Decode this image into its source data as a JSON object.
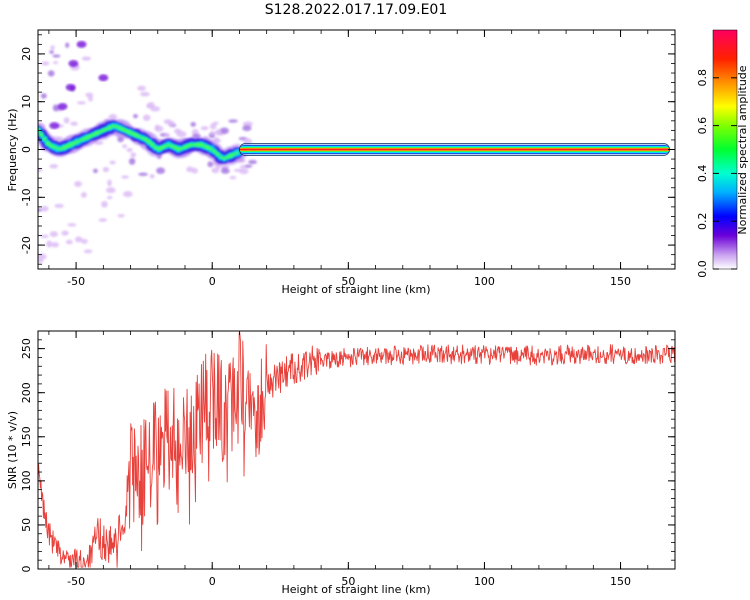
{
  "title": "S128.2022.017.17.09.E01",
  "chart_data": [
    {
      "type": "heatmap",
      "xlabel": "Height of straight line (km)",
      "ylabel": "Frequency (Hz)",
      "xlim": [
        -64,
        170
      ],
      "ylim": [
        -25,
        25
      ],
      "xticks": [
        "-50",
        "0",
        "50",
        "100",
        "150"
      ],
      "xtick_values": [
        -50,
        0,
        50,
        100,
        150
      ],
      "yticks": [
        "20",
        "10",
        "0",
        "-10",
        "-20"
      ],
      "ytick_values": [
        20,
        10,
        0,
        -10,
        -20
      ],
      "colorbar": {
        "label": "Normalized spectral amplitude",
        "range": [
          0,
          1
        ],
        "ticks": [
          "0.0",
          "0.2",
          "0.4",
          "0.6",
          "0.8"
        ],
        "tick_values": [
          0.0,
          0.2,
          0.4,
          0.6,
          0.8
        ],
        "colormap": "rainbow (magenta-blue-cyan-green-yellow-orange-red)"
      },
      "ridge": {
        "x": [
          -64,
          -60,
          -56,
          -52,
          -48,
          -44,
          -40,
          -36,
          -32,
          -28,
          -24,
          -20,
          -16,
          -12,
          -8,
          -4,
          0,
          4,
          8,
          12,
          20,
          40,
          60,
          80,
          100,
          120,
          140,
          160,
          168
        ],
        "y": [
          4,
          1,
          0,
          1,
          2,
          3,
          4,
          5,
          4,
          3,
          2,
          0,
          1,
          0,
          1,
          1,
          0,
          -2,
          -1,
          0,
          0,
          0,
          0,
          0,
          0,
          0,
          0,
          0,
          0
        ]
      }
    },
    {
      "type": "line",
      "xlabel": "Height of straight line (km)",
      "ylabel": "SNR (10 * v/v)",
      "xlim": [
        -64,
        170
      ],
      "ylim": [
        0,
        270
      ],
      "xticks": [
        "-50",
        "0",
        "50",
        "100",
        "150"
      ],
      "xtick_values": [
        -50,
        0,
        50,
        100,
        150
      ],
      "yticks": [
        "0",
        "50",
        "100",
        "150",
        "200",
        "250"
      ],
      "ytick_values": [
        0,
        50,
        100,
        150,
        200,
        250
      ],
      "color": "#e8403a",
      "series": [
        {
          "x": [
            -64,
            -62,
            -60,
            -56,
            -52,
            -48,
            -44,
            -42,
            -40,
            -36,
            -32,
            -30,
            -28,
            -24,
            -20,
            -16,
            -12,
            -8,
            -4,
            0,
            4,
            8,
            10,
            12,
            16,
            20,
            24,
            28,
            32,
            36,
            40,
            50,
            60,
            80,
            100,
            120,
            140,
            160,
            170
          ],
          "y": [
            110,
            70,
            40,
            15,
            10,
            8,
            15,
            40,
            30,
            25,
            60,
            130,
            90,
            120,
            140,
            150,
            160,
            150,
            180,
            190,
            180,
            195,
            220,
            200,
            180,
            210,
            215,
            225,
            230,
            235,
            238,
            240,
            242,
            244,
            243,
            242,
            244,
            243,
            245
          ]
        }
      ]
    }
  ]
}
